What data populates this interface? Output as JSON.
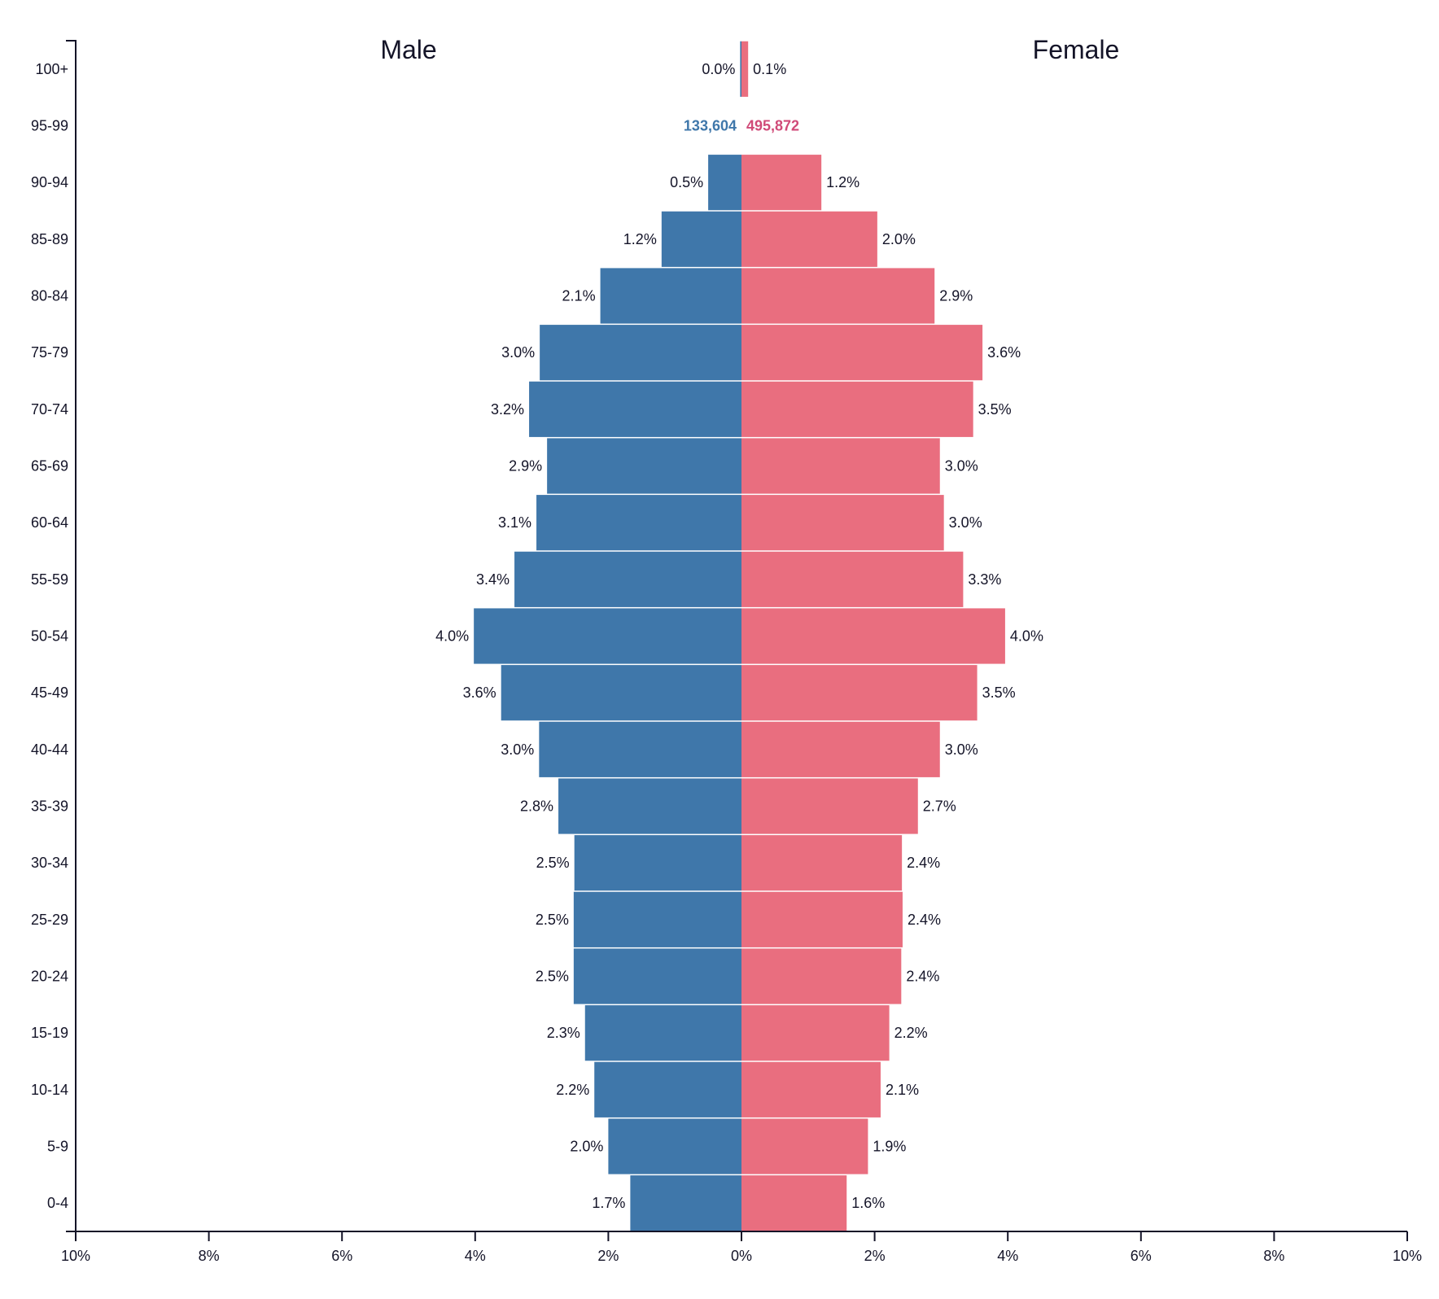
{
  "chart_data": {
    "type": "bar",
    "orientation": "horizontal-population-pyramid",
    "title": "",
    "left_title": "Male",
    "right_title": "Female",
    "xlabel": "",
    "ylabel": "",
    "xlim": [
      -10,
      10
    ],
    "x_unit": "%",
    "x_ticks": [
      {
        "value": -10,
        "label": "10%"
      },
      {
        "value": -8,
        "label": "8%"
      },
      {
        "value": -6,
        "label": "6%"
      },
      {
        "value": -4,
        "label": "4%"
      },
      {
        "value": -2,
        "label": "2%"
      },
      {
        "value": 0,
        "label": "0%"
      },
      {
        "value": 2,
        "label": "2%"
      },
      {
        "value": 4,
        "label": "4%"
      },
      {
        "value": 6,
        "label": "6%"
      },
      {
        "value": 8,
        "label": "8%"
      },
      {
        "value": 10,
        "label": "10%"
      }
    ],
    "categories": [
      "100+",
      "95-99",
      "90-94",
      "85-89",
      "80-84",
      "75-79",
      "70-74",
      "65-69",
      "60-64",
      "55-59",
      "50-54",
      "45-49",
      "40-44",
      "35-39",
      "30-34",
      "25-29",
      "20-24",
      "15-19",
      "10-14",
      "5-9",
      "0-4"
    ],
    "series": [
      {
        "name": "Male",
        "color": "#3f77aa",
        "values": [
          0.02,
          null,
          0.5,
          1.2,
          2.12,
          3.03,
          3.19,
          2.92,
          3.08,
          3.41,
          4.02,
          3.61,
          3.04,
          2.75,
          2.51,
          2.52,
          2.52,
          2.35,
          2.21,
          2.0,
          1.67
        ],
        "labels": [
          "0.0%",
          "",
          "0.5%",
          "1.2%",
          "2.1%",
          "3.0%",
          "3.2%",
          "2.9%",
          "3.1%",
          "3.4%",
          "4.0%",
          "3.6%",
          "3.0%",
          "2.8%",
          "2.5%",
          "2.5%",
          "2.5%",
          "2.3%",
          "2.2%",
          "2.0%",
          "1.7%"
        ]
      },
      {
        "name": "Female",
        "color": "#e96e7f",
        "values": [
          0.1,
          null,
          1.2,
          2.04,
          2.9,
          3.62,
          3.48,
          2.98,
          3.04,
          3.33,
          3.96,
          3.54,
          2.98,
          2.65,
          2.41,
          2.42,
          2.4,
          2.22,
          2.09,
          1.9,
          1.58
        ],
        "labels": [
          "0.1%",
          "",
          "1.2%",
          "2.0%",
          "2.9%",
          "3.6%",
          "3.5%",
          "3.0%",
          "3.0%",
          "3.3%",
          "4.0%",
          "3.5%",
          "3.0%",
          "2.7%",
          "2.4%",
          "2.4%",
          "2.4%",
          "2.2%",
          "2.1%",
          "1.9%",
          "1.6%"
        ]
      }
    ],
    "highlight": {
      "category": "95-99",
      "male_count": "133,604",
      "female_count": "495,872",
      "male_color": "#3f77aa",
      "female_color": "#d04a78"
    },
    "grid": false,
    "legend": "none"
  }
}
